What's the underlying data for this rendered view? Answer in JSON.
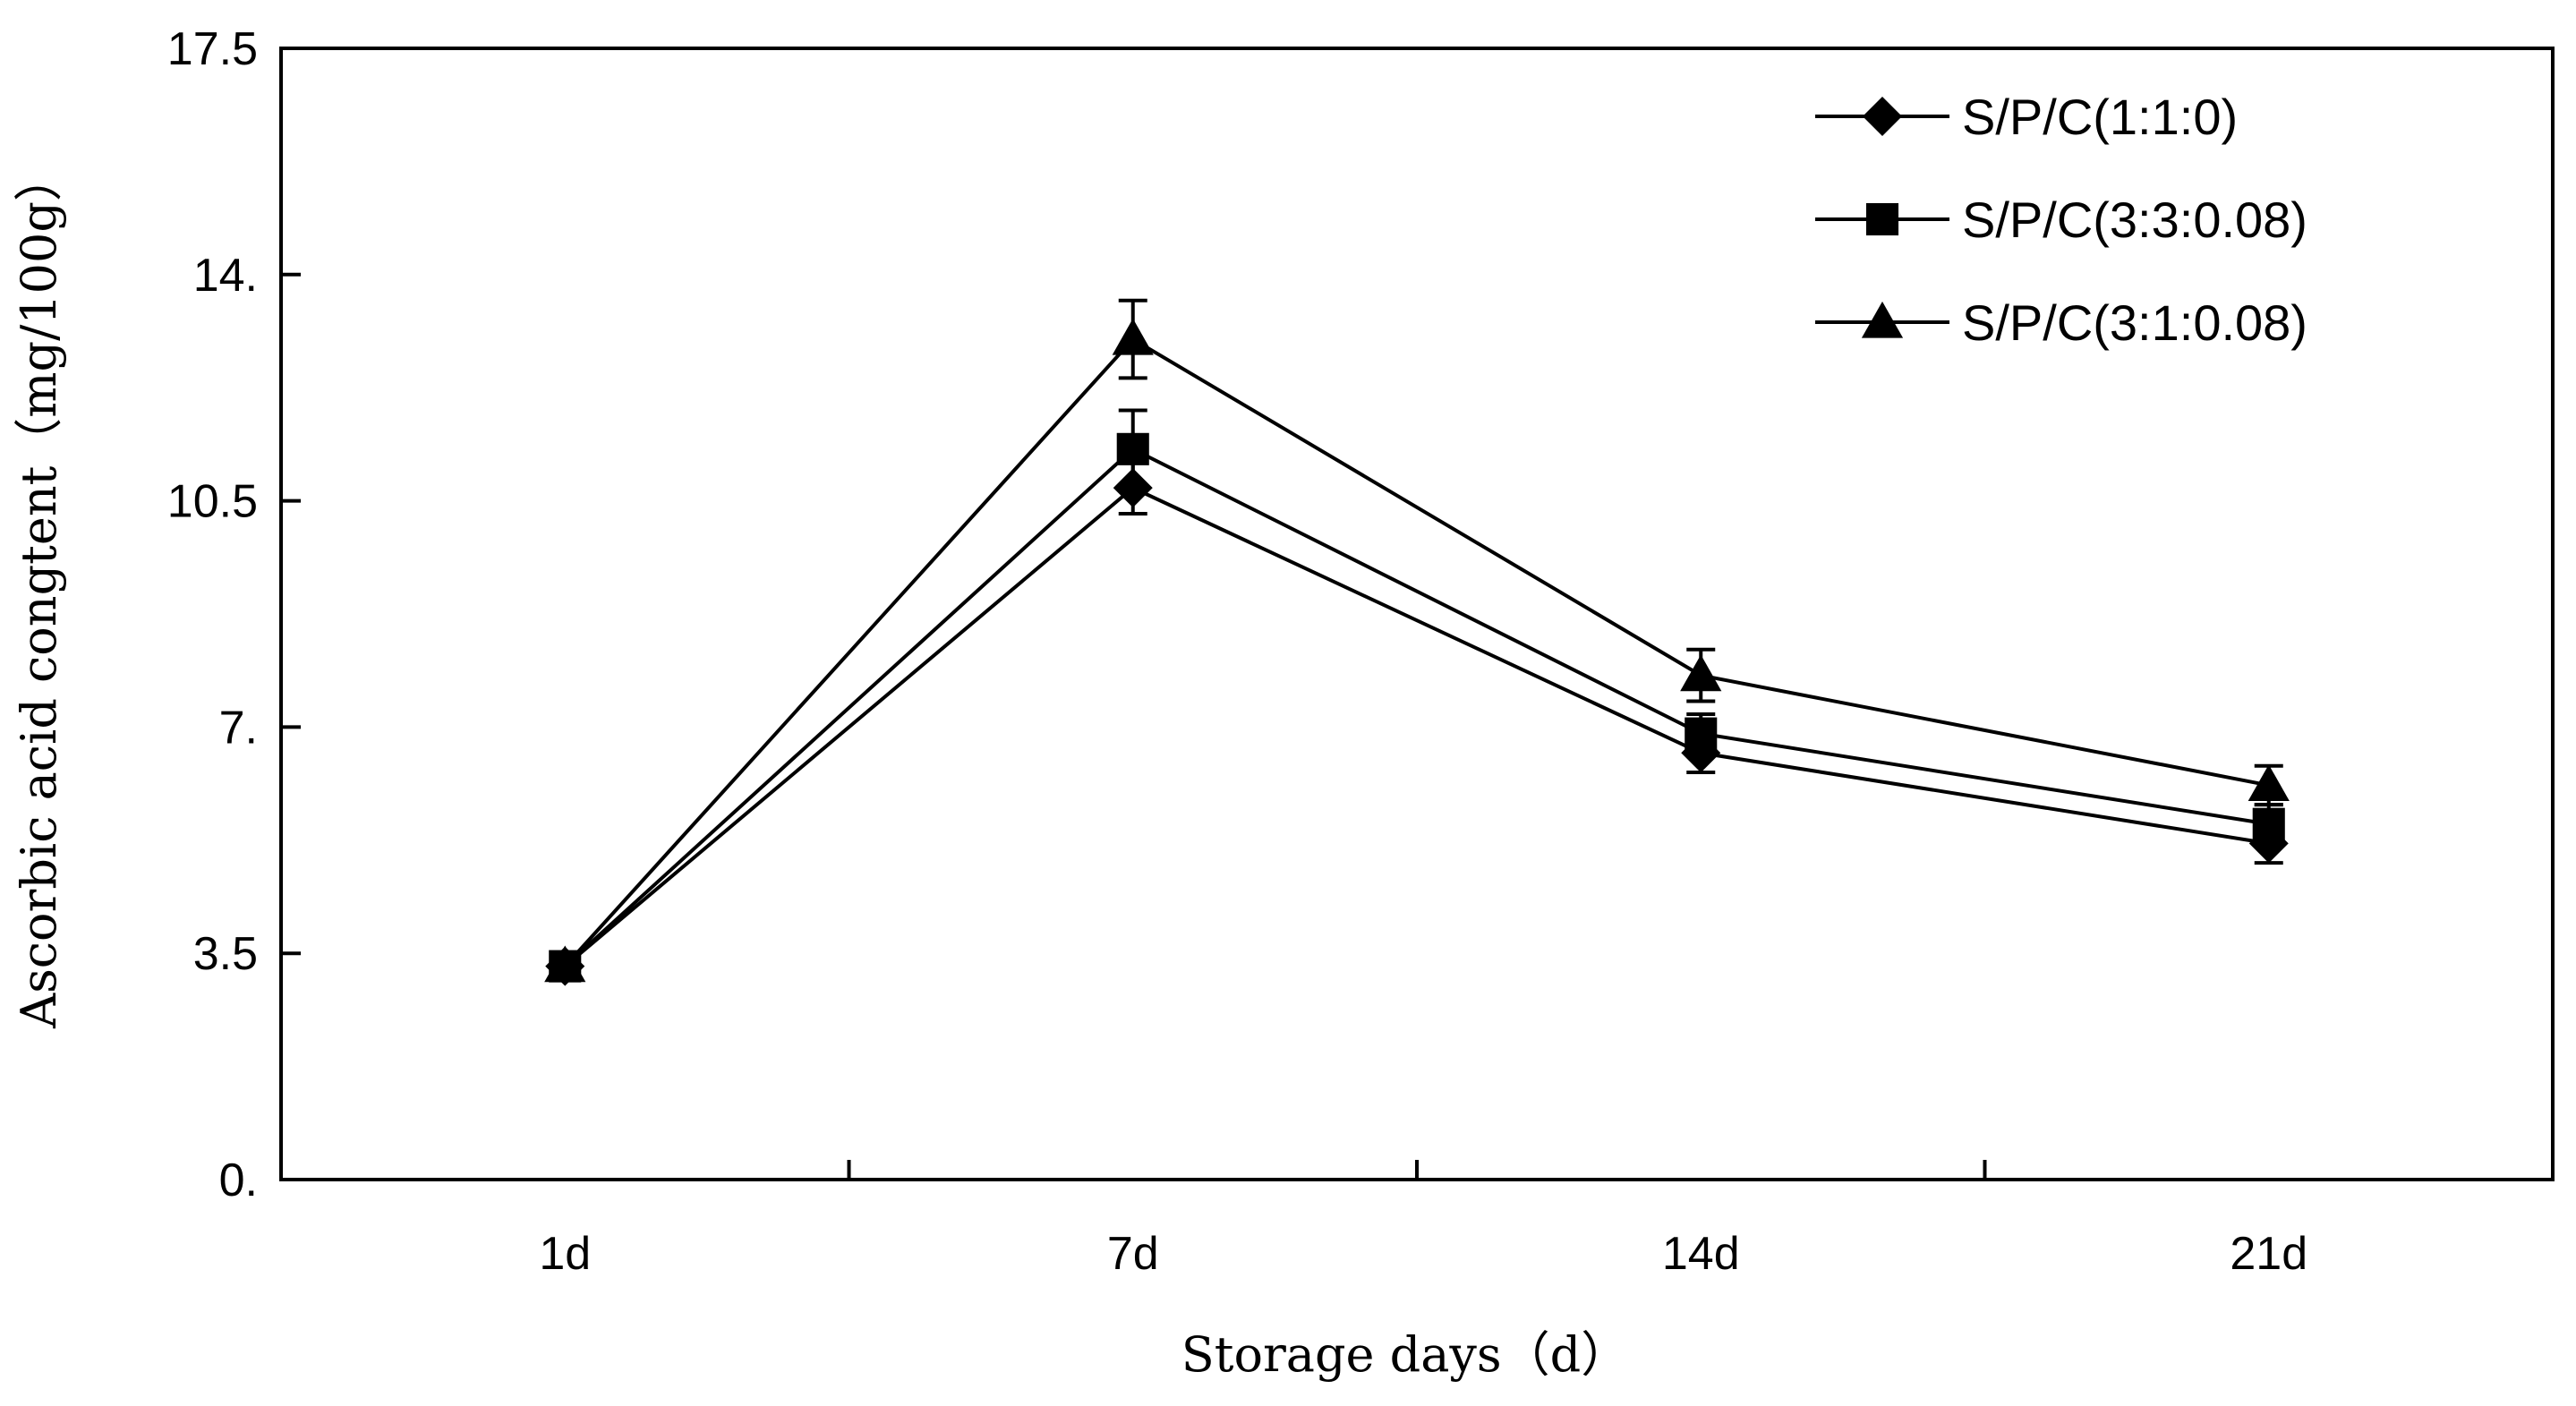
{
  "chart_data": {
    "type": "line",
    "title": "",
    "xlabel": "Storage days（d）",
    "ylabel": "Ascorbic acid congtent（mg/100g）",
    "categories": [
      "1d",
      "7d",
      "14d",
      "21d"
    ],
    "ylim": [
      0,
      17.5
    ],
    "yticks": [
      0,
      3.5,
      7,
      10.5,
      14,
      17.5
    ],
    "ytick_labels": [
      "0.",
      "3.5",
      "7.",
      "10.5",
      "14.",
      "17.5"
    ],
    "grid": false,
    "legend_position": "top-right",
    "series": [
      {
        "name": "S/P/C(1:1:0)",
        "marker": "diamond",
        "values": [
          3.3,
          10.7,
          6.6,
          5.2
        ],
        "errors": [
          0.1,
          0.4,
          0.3,
          0.3
        ]
      },
      {
        "name": "S/P/C(3:3:0.08)",
        "marker": "square",
        "values": [
          3.3,
          11.3,
          6.9,
          5.5
        ],
        "errors": [
          0.1,
          0.6,
          0.3,
          0.3
        ]
      },
      {
        "name": "S/P/C(3:1:0.08)",
        "marker": "triangle",
        "values": [
          3.3,
          13.0,
          7.8,
          6.1
        ],
        "errors": [
          0.1,
          0.6,
          0.4,
          0.3
        ]
      }
    ],
    "colors": {
      "line": "#000000",
      "axis": "#000000",
      "background": "#ffffff"
    }
  }
}
